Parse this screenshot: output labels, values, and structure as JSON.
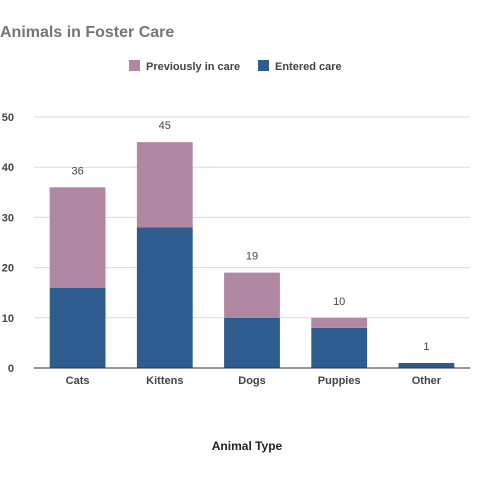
{
  "chart_data": {
    "type": "bar",
    "stacked": true,
    "title": "Animals in Foster Care",
    "xlabel": "Animal Type",
    "ylabel": "",
    "categories": [
      "Cats",
      "Kittens",
      "Dogs",
      "Puppies",
      "Other"
    ],
    "series": [
      {
        "name": "Entered care",
        "values": [
          16,
          28,
          10,
          8,
          1
        ],
        "color": "#2e5c8f"
      },
      {
        "name": "Previously in care",
        "values": [
          20,
          17,
          9,
          2,
          0
        ],
        "color": "#b088a4"
      }
    ],
    "totals": [
      "36",
      "45",
      "19",
      "10",
      "1"
    ],
    "ylim": [
      0,
      50
    ],
    "yticks": [
      "0",
      "10",
      "20",
      "30",
      "40",
      "50"
    ],
    "grid": true,
    "legend": {
      "position": "top",
      "entries": [
        {
          "label": "Previously in care",
          "color": "#b088a4"
        },
        {
          "label": "Entered care",
          "color": "#2e5c8f"
        }
      ]
    }
  }
}
